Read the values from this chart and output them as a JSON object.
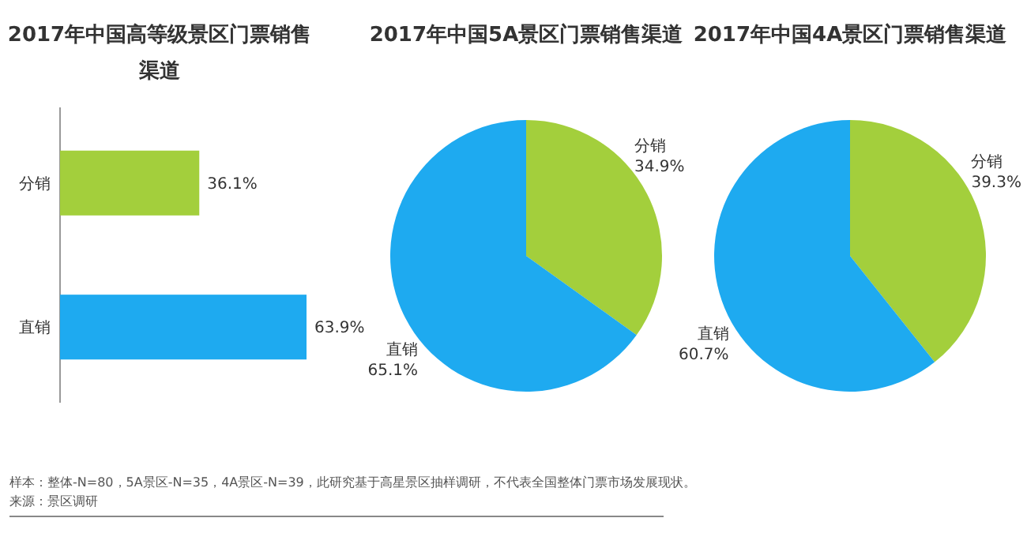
{
  "chart_data": [
    {
      "type": "bar",
      "orientation": "horizontal",
      "title": "2017年中国高等级景区门票销售渠道",
      "categories": [
        "分销",
        "直销"
      ],
      "values": [
        36.1,
        63.9
      ],
      "colors": [
        "#a3cf3c",
        "#1eaaf0"
      ],
      "value_labels": [
        "36.1%",
        "63.9%"
      ],
      "annotations": [
        "样本：整体-N=80，5A景区-N=35，4A景区-N=39，此研究基于高星景区抽样调研，不代表全国整体门票市场发展现状。",
        "来源：景区调研"
      ]
    },
    {
      "type": "pie",
      "title": "2017年中国5A景区门票销售渠道",
      "categories": [
        "分销",
        "直销"
      ],
      "values": [
        34.9,
        65.1
      ],
      "colors": [
        "#a3cf3c",
        "#1eaaf0"
      ],
      "value_labels": [
        "34.9%",
        "65.1%"
      ]
    },
    {
      "type": "pie",
      "title": "2017年中国4A景区门票销售渠道",
      "categories": [
        "分销",
        "直销"
      ],
      "values": [
        39.3,
        60.7
      ],
      "colors": [
        "#a3cf3c",
        "#1eaaf0"
      ],
      "value_labels": [
        "39.3%",
        "60.7%"
      ]
    }
  ]
}
